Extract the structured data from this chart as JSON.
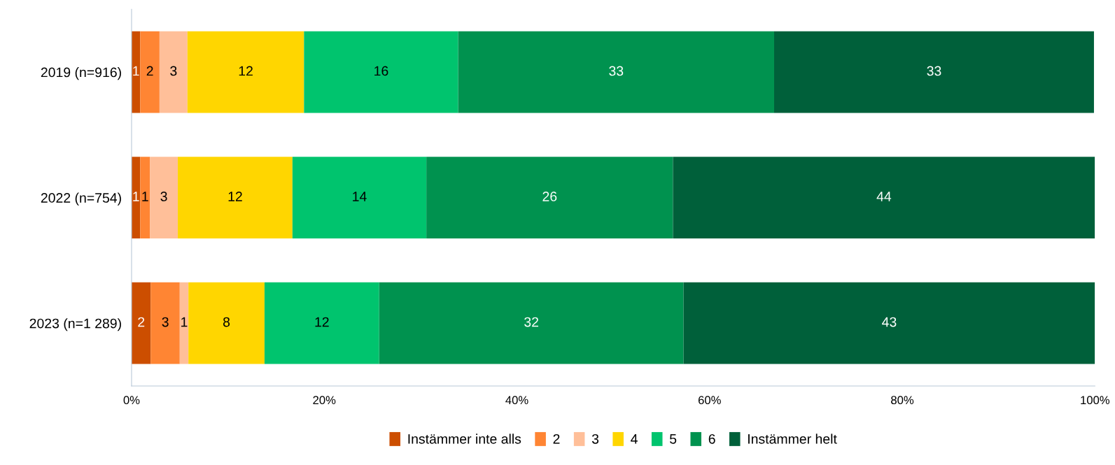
{
  "chart_data": {
    "type": "bar",
    "orientation": "horizontal",
    "stacked": true,
    "categories": [
      "2019 (n=916)",
      "2022 (n=754)",
      "2023 (n=1 289)"
    ],
    "series": [
      {
        "name": "Instämmer inte alls",
        "color": "#cc4e00",
        "values": [
          0.9,
          0.9,
          2.0
        ],
        "value_labels": [
          "1",
          "1",
          "2"
        ]
      },
      {
        "name": "2",
        "color": "#ff8533",
        "values": [
          2.0,
          1.0,
          3.0
        ],
        "value_labels": [
          "2",
          "1",
          "3"
        ]
      },
      {
        "name": "3",
        "color": "#ffbf99",
        "values": [
          2.9,
          2.9,
          0.9
        ],
        "value_labels": [
          "3",
          "3",
          "1"
        ]
      },
      {
        "name": "4",
        "color": "#ffd600",
        "values": [
          12.1,
          11.9,
          7.9
        ],
        "value_labels": [
          "12",
          "12",
          "8"
        ]
      },
      {
        "name": "5",
        "color": "#00c46e",
        "values": [
          16.0,
          13.9,
          11.9
        ],
        "value_labels": [
          "16",
          "14",
          "12"
        ]
      },
      {
        "name": "6",
        "color": "#00924f",
        "values": [
          32.8,
          25.6,
          31.6
        ],
        "value_labels": [
          "33",
          "26",
          "32"
        ]
      },
      {
        "name": "Instämmer helt",
        "color": "#00603a",
        "values": [
          33.2,
          43.8,
          42.7
        ],
        "value_labels": [
          "33",
          "44",
          "43"
        ]
      }
    ],
    "xlim": [
      0,
      100
    ],
    "xticks": [
      {
        "value": 0,
        "label": "0%"
      },
      {
        "value": 20,
        "label": "20%"
      },
      {
        "value": 40,
        "label": "40%"
      },
      {
        "value": 60,
        "label": "60%"
      },
      {
        "value": 80,
        "label": "80%"
      },
      {
        "value": 100,
        "label": "100%"
      }
    ],
    "grid": false,
    "legend": "bottom"
  }
}
